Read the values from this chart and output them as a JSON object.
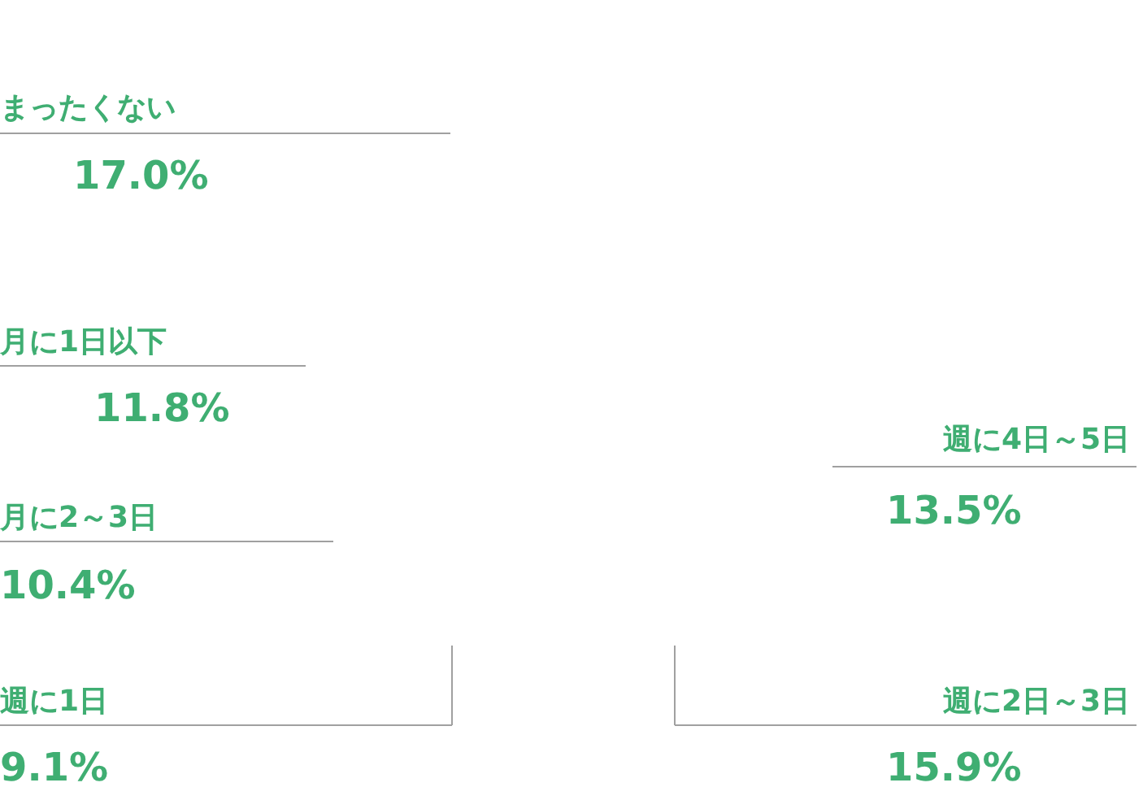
{
  "chart_data": {
    "type": "other",
    "categories": [
      "まったくない",
      "月に1日以下",
      "月に2～3日",
      "週に1日",
      "週に4日～5日",
      "週に2日～3日"
    ],
    "values": [
      17.0,
      11.8,
      10.4,
      9.1,
      13.5,
      15.9
    ],
    "value_labels": [
      "17.0%",
      "11.8%",
      "10.4%",
      "9.1%",
      "13.5%",
      "15.9%"
    ],
    "colors": [
      "#3fae72",
      "#3fae72",
      "#3fae72",
      "#3fae72",
      "#3fae72",
      "#3fae72"
    ]
  }
}
